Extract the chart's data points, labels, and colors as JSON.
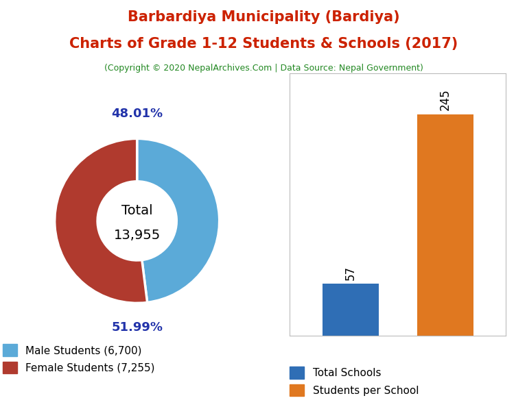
{
  "title_line1": "Barbardiya Municipality (Bardiya)",
  "title_line2": "Charts of Grade 1-12 Students & Schools (2017)",
  "copyright": "(Copyright © 2020 NepalArchives.Com | Data Source: Nepal Government)",
  "title_color": "#cc2200",
  "copyright_color": "#228822",
  "male_students": 6700,
  "female_students": 7255,
  "total_students": 13955,
  "male_pct": "48.01%",
  "female_pct": "51.99%",
  "male_color": "#5BAAD8",
  "female_color": "#B03A2E",
  "total_schools": 57,
  "students_per_school": 245,
  "bar_school_color": "#2F6EB5",
  "bar_sps_color": "#E07820",
  "legend_pie": [
    "Male Students (6,700)",
    "Female Students (7,255)"
  ],
  "legend_bar": [
    "Total Schools",
    "Students per School"
  ],
  "pct_color": "#2233AA",
  "background_color": "#ffffff"
}
